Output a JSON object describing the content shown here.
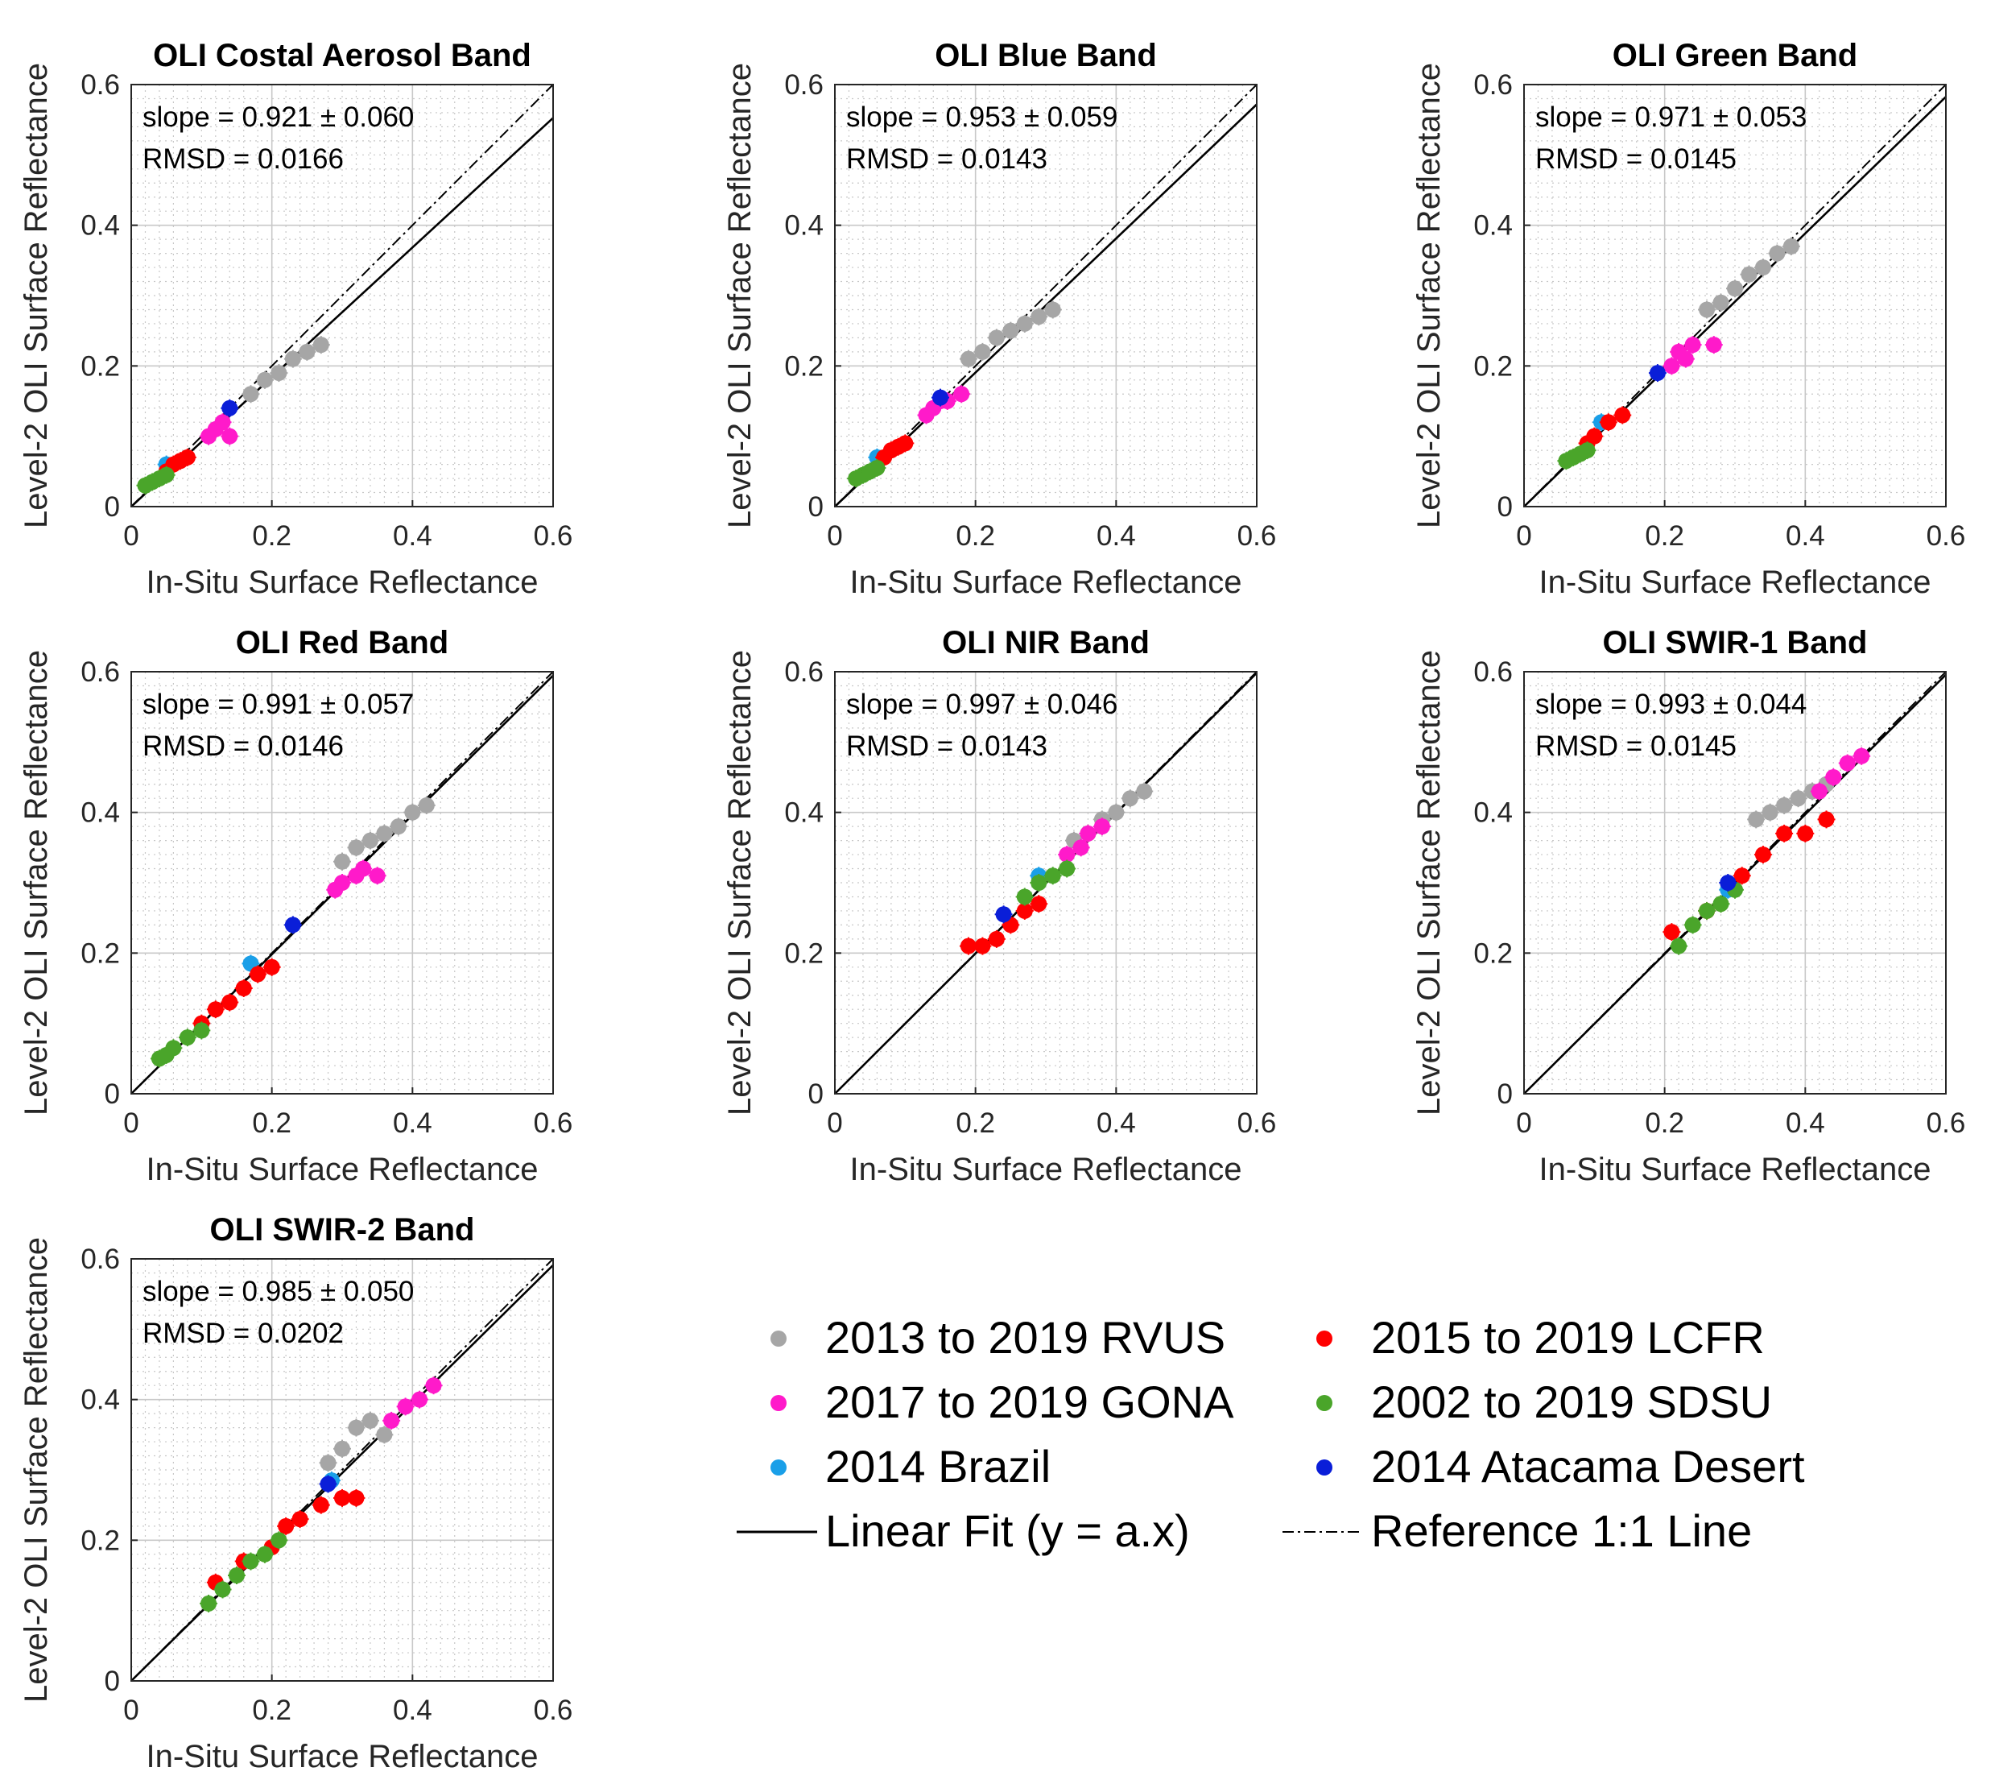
{
  "chart_data": [
    {
      "type": "scatter",
      "title": "OLI Costal Aerosol Band",
      "xlabel": "In-Situ Surface Reflectance",
      "ylabel": "Level-2 OLI Surface Reflectance",
      "xlim": [
        0,
        0.6
      ],
      "ylim": [
        0,
        0.6
      ],
      "grid": true,
      "xticks": [
        "0",
        "0.2",
        "0.4",
        "0.6"
      ],
      "yticks": [
        "0",
        "0.2",
        "0.4",
        "0.6"
      ],
      "slope_text": "slope = 0.921 ± 0.060",
      "rmsd_text": "RMSD = 0.0166",
      "fit_slope": 0.921,
      "series": [
        {
          "name": "2013 to 2019 RVUS",
          "x": [
            0.17,
            0.19,
            0.21,
            0.23,
            0.25,
            0.27
          ],
          "y": [
            0.16,
            0.18,
            0.19,
            0.21,
            0.22,
            0.23
          ]
        },
        {
          "name": "2017 to 2019 GONA",
          "x": [
            0.11,
            0.12,
            0.13,
            0.14
          ],
          "y": [
            0.1,
            0.11,
            0.12,
            0.1
          ]
        },
        {
          "name": "2014 Brazil",
          "x": [
            0.05
          ],
          "y": [
            0.06
          ]
        },
        {
          "name": "2015 to 2019 LCFR",
          "x": [
            0.05,
            0.06,
            0.07,
            0.08
          ],
          "y": [
            0.05,
            0.06,
            0.065,
            0.07
          ]
        },
        {
          "name": "2002 to 2019 SDSU",
          "x": [
            0.02,
            0.03,
            0.04,
            0.05
          ],
          "y": [
            0.03,
            0.035,
            0.04,
            0.045
          ]
        },
        {
          "name": "2014 Atacama Desert",
          "x": [
            0.14
          ],
          "y": [
            0.14
          ]
        }
      ]
    },
    {
      "type": "scatter",
      "title": "OLI Blue Band",
      "xlabel": "In-Situ Surface Reflectance",
      "ylabel": "Level-2 OLI Surface Reflectance",
      "xlim": [
        0,
        0.6
      ],
      "ylim": [
        0,
        0.6
      ],
      "grid": true,
      "xticks": [
        "0",
        "0.2",
        "0.4",
        "0.6"
      ],
      "yticks": [
        "0",
        "0.2",
        "0.4",
        "0.6"
      ],
      "slope_text": "slope = 0.953 ± 0.059",
      "rmsd_text": "RMSD = 0.0143",
      "fit_slope": 0.953,
      "series": [
        {
          "name": "2013 to 2019 RVUS",
          "x": [
            0.19,
            0.21,
            0.23,
            0.25,
            0.27,
            0.29,
            0.31
          ],
          "y": [
            0.21,
            0.22,
            0.24,
            0.25,
            0.26,
            0.27,
            0.28
          ]
        },
        {
          "name": "2017 to 2019 GONA",
          "x": [
            0.13,
            0.14,
            0.15,
            0.16,
            0.18
          ],
          "y": [
            0.13,
            0.14,
            0.15,
            0.15,
            0.16
          ]
        },
        {
          "name": "2014 Brazil",
          "x": [
            0.06
          ],
          "y": [
            0.07
          ]
        },
        {
          "name": "2015 to 2019 LCFR",
          "x": [
            0.07,
            0.08,
            0.09,
            0.1
          ],
          "y": [
            0.07,
            0.08,
            0.085,
            0.09
          ]
        },
        {
          "name": "2002 to 2019 SDSU",
          "x": [
            0.03,
            0.04,
            0.05,
            0.06
          ],
          "y": [
            0.04,
            0.045,
            0.05,
            0.055
          ]
        },
        {
          "name": "2014 Atacama Desert",
          "x": [
            0.15
          ],
          "y": [
            0.155
          ]
        }
      ]
    },
    {
      "type": "scatter",
      "title": "OLI Green Band",
      "xlabel": "In-Situ Surface Reflectance",
      "ylabel": "Level-2 OLI Surface Reflectance",
      "xlim": [
        0,
        0.6
      ],
      "ylim": [
        0,
        0.6
      ],
      "grid": true,
      "xticks": [
        "0",
        "0.2",
        "0.4",
        "0.6"
      ],
      "yticks": [
        "0",
        "0.2",
        "0.4",
        "0.6"
      ],
      "slope_text": "slope = 0.971 ± 0.053",
      "rmsd_text": "RMSD = 0.0145",
      "fit_slope": 0.971,
      "series": [
        {
          "name": "2013 to 2019 RVUS",
          "x": [
            0.26,
            0.28,
            0.3,
            0.32,
            0.34,
            0.36,
            0.38
          ],
          "y": [
            0.28,
            0.29,
            0.31,
            0.33,
            0.34,
            0.36,
            0.37
          ]
        },
        {
          "name": "2017 to 2019 GONA",
          "x": [
            0.21,
            0.22,
            0.23,
            0.24,
            0.27
          ],
          "y": [
            0.2,
            0.22,
            0.21,
            0.23,
            0.23
          ]
        },
        {
          "name": "2014 Brazil",
          "x": [
            0.11
          ],
          "y": [
            0.12
          ]
        },
        {
          "name": "2015 to 2019 LCFR",
          "x": [
            0.09,
            0.1,
            0.12,
            0.14
          ],
          "y": [
            0.09,
            0.1,
            0.12,
            0.13
          ]
        },
        {
          "name": "2002 to 2019 SDSU",
          "x": [
            0.06,
            0.07,
            0.08,
            0.09
          ],
          "y": [
            0.065,
            0.07,
            0.075,
            0.08
          ]
        },
        {
          "name": "2014 Atacama Desert",
          "x": [
            0.19
          ],
          "y": [
            0.19
          ]
        }
      ]
    },
    {
      "type": "scatter",
      "title": "OLI Red Band",
      "xlabel": "In-Situ Surface Reflectance",
      "ylabel": "Level-2 OLI Surface Reflectance",
      "xlim": [
        0,
        0.6
      ],
      "ylim": [
        0,
        0.6
      ],
      "grid": true,
      "xticks": [
        "0",
        "0.2",
        "0.4",
        "0.6"
      ],
      "yticks": [
        "0",
        "0.2",
        "0.4",
        "0.6"
      ],
      "slope_text": "slope = 0.991 ± 0.057",
      "rmsd_text": "RMSD = 0.0146",
      "fit_slope": 0.991,
      "series": [
        {
          "name": "2013 to 2019 RVUS",
          "x": [
            0.3,
            0.32,
            0.34,
            0.36,
            0.38,
            0.4,
            0.42
          ],
          "y": [
            0.33,
            0.35,
            0.36,
            0.37,
            0.38,
            0.4,
            0.41
          ]
        },
        {
          "name": "2017 to 2019 GONA",
          "x": [
            0.29,
            0.3,
            0.32,
            0.33,
            0.35
          ],
          "y": [
            0.29,
            0.3,
            0.31,
            0.32,
            0.31
          ]
        },
        {
          "name": "2014 Brazil",
          "x": [
            0.17
          ],
          "y": [
            0.185
          ]
        },
        {
          "name": "2015 to 2019 LCFR",
          "x": [
            0.1,
            0.12,
            0.14,
            0.16,
            0.18,
            0.2
          ],
          "y": [
            0.1,
            0.12,
            0.13,
            0.15,
            0.17,
            0.18
          ]
        },
        {
          "name": "2002 to 2019 SDSU",
          "x": [
            0.04,
            0.05,
            0.06,
            0.08,
            0.1
          ],
          "y": [
            0.05,
            0.055,
            0.065,
            0.08,
            0.09
          ]
        },
        {
          "name": "2014 Atacama Desert",
          "x": [
            0.23
          ],
          "y": [
            0.24
          ]
        }
      ]
    },
    {
      "type": "scatter",
      "title": "OLI NIR Band",
      "xlabel": "In-Situ Surface Reflectance",
      "ylabel": "Level-2 OLI Surface Reflectance",
      "xlim": [
        0,
        0.6
      ],
      "ylim": [
        0,
        0.6
      ],
      "grid": true,
      "xticks": [
        "0",
        "0.2",
        "0.4",
        "0.6"
      ],
      "yticks": [
        "0",
        "0.2",
        "0.4",
        "0.6"
      ],
      "slope_text": "slope = 0.997 ± 0.046",
      "rmsd_text": "RMSD = 0.0143",
      "fit_slope": 0.997,
      "series": [
        {
          "name": "2013 to 2019 RVUS",
          "x": [
            0.34,
            0.36,
            0.38,
            0.4,
            0.42,
            0.44
          ],
          "y": [
            0.36,
            0.37,
            0.39,
            0.4,
            0.42,
            0.43
          ]
        },
        {
          "name": "2017 to 2019 GONA",
          "x": [
            0.33,
            0.35,
            0.36,
            0.38
          ],
          "y": [
            0.34,
            0.35,
            0.37,
            0.38
          ]
        },
        {
          "name": "2014 Brazil",
          "x": [
            0.29
          ],
          "y": [
            0.31
          ]
        },
        {
          "name": "2015 to 2019 LCFR",
          "x": [
            0.19,
            0.21,
            0.23,
            0.25,
            0.27,
            0.29
          ],
          "y": [
            0.21,
            0.21,
            0.22,
            0.24,
            0.26,
            0.27
          ]
        },
        {
          "name": "2002 to 2019 SDSU",
          "x": [
            0.27,
            0.29,
            0.31,
            0.33
          ],
          "y": [
            0.28,
            0.3,
            0.31,
            0.32
          ]
        },
        {
          "name": "2014 Atacama Desert",
          "x": [
            0.24
          ],
          "y": [
            0.255
          ]
        }
      ]
    },
    {
      "type": "scatter",
      "title": "OLI SWIR-1 Band",
      "xlabel": "In-Situ Surface Reflectance",
      "ylabel": "Level-2 OLI Surface Reflectance",
      "xlim": [
        0,
        0.6
      ],
      "ylim": [
        0,
        0.6
      ],
      "grid": true,
      "xticks": [
        "0",
        "0.2",
        "0.4",
        "0.6"
      ],
      "yticks": [
        "0",
        "0.2",
        "0.4",
        "0.6"
      ],
      "slope_text": "slope = 0.993 ± 0.044",
      "rmsd_text": "RMSD = 0.0145",
      "fit_slope": 0.993,
      "series": [
        {
          "name": "2013 to 2019 RVUS",
          "x": [
            0.33,
            0.35,
            0.37,
            0.39,
            0.41,
            0.43
          ],
          "y": [
            0.39,
            0.4,
            0.41,
            0.42,
            0.43,
            0.44
          ]
        },
        {
          "name": "2017 to 2019 GONA",
          "x": [
            0.42,
            0.44,
            0.46,
            0.48
          ],
          "y": [
            0.43,
            0.45,
            0.47,
            0.48
          ]
        },
        {
          "name": "2014 Brazil",
          "x": [
            0.29
          ],
          "y": [
            0.29
          ]
        },
        {
          "name": "2015 to 2019 LCFR",
          "x": [
            0.21,
            0.26,
            0.31,
            0.34,
            0.37,
            0.4,
            0.43
          ],
          "y": [
            0.23,
            0.26,
            0.31,
            0.34,
            0.37,
            0.37,
            0.39
          ]
        },
        {
          "name": "2002 to 2019 SDSU",
          "x": [
            0.22,
            0.24,
            0.26,
            0.28,
            0.3
          ],
          "y": [
            0.21,
            0.24,
            0.26,
            0.27,
            0.29
          ]
        },
        {
          "name": "2014 Atacama Desert",
          "x": [
            0.29
          ],
          "y": [
            0.3
          ]
        }
      ]
    },
    {
      "type": "scatter",
      "title": "OLI SWIR-2 Band",
      "xlabel": "In-Situ Surface Reflectance",
      "ylabel": "Level-2 OLI Surface Reflectance",
      "xlim": [
        0,
        0.6
      ],
      "ylim": [
        0,
        0.6
      ],
      "grid": true,
      "xticks": [
        "0",
        "0.2",
        "0.4",
        "0.6"
      ],
      "yticks": [
        "0",
        "0.2",
        "0.4",
        "0.6"
      ],
      "slope_text": "slope = 0.985 ± 0.050",
      "rmsd_text": "RMSD = 0.0202",
      "fit_slope": 0.985,
      "series": [
        {
          "name": "2013 to 2019 RVUS",
          "x": [
            0.28,
            0.3,
            0.32,
            0.34,
            0.36
          ],
          "y": [
            0.31,
            0.33,
            0.36,
            0.37,
            0.35
          ]
        },
        {
          "name": "2017 to 2019 GONA",
          "x": [
            0.37,
            0.39,
            0.41,
            0.43
          ],
          "y": [
            0.37,
            0.39,
            0.4,
            0.42
          ]
        },
        {
          "name": "2014 Brazil",
          "x": [
            0.285
          ],
          "y": [
            0.285
          ]
        },
        {
          "name": "2015 to 2019 LCFR",
          "x": [
            0.12,
            0.16,
            0.2,
            0.22,
            0.24,
            0.27,
            0.3,
            0.32
          ],
          "y": [
            0.14,
            0.17,
            0.19,
            0.22,
            0.23,
            0.25,
            0.26,
            0.26
          ]
        },
        {
          "name": "2002 to 2019 SDSU",
          "x": [
            0.11,
            0.13,
            0.15,
            0.17,
            0.19,
            0.21
          ],
          "y": [
            0.11,
            0.13,
            0.15,
            0.17,
            0.18,
            0.2
          ]
        },
        {
          "name": "2014 Atacama Desert",
          "x": [
            0.28
          ],
          "y": [
            0.28
          ]
        }
      ]
    }
  ],
  "colors": {
    "2013 to 2019 RVUS": "#a6a6a6",
    "2017 to 2019 GONA": "#ff1aca",
    "2014 Brazil": "#1a9fe8",
    "2015 to 2019 LCFR": "#ff0000",
    "2002 to 2019 SDSU": "#4aa52a",
    "2014 Atacama Desert": "#0a1ed8",
    "grid": "#c8c8c8",
    "axis": "#262626"
  },
  "legend": {
    "items": [
      {
        "label": "2013 to 2019 RVUS",
        "kind": "marker"
      },
      {
        "label": "2015 to 2019 LCFR",
        "kind": "marker"
      },
      {
        "label": "2017 to 2019 GONA",
        "kind": "marker"
      },
      {
        "label": "2002 to 2019 SDSU",
        "kind": "marker"
      },
      {
        "label": "2014 Brazil",
        "kind": "marker"
      },
      {
        "label": "2014 Atacama Desert",
        "kind": "marker"
      },
      {
        "label": "Linear Fit (y = a.x)",
        "kind": "solid-line"
      },
      {
        "label": "Reference 1:1 Line",
        "kind": "dashdot-line"
      }
    ]
  }
}
